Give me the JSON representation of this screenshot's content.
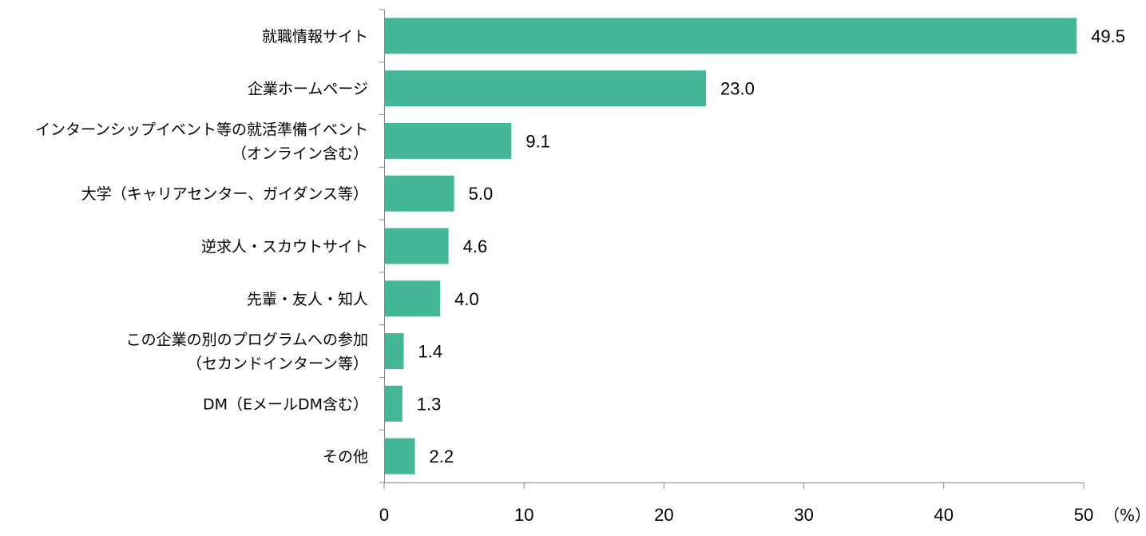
{
  "chart_data": {
    "type": "bar",
    "orientation": "horizontal",
    "categories": [
      [
        "就職情報サイト"
      ],
      [
        "企業ホームページ"
      ],
      [
        "インターンシップイベント等の就活準備イベント",
        "（オンライン含む）"
      ],
      [
        "大学（キャリアセンター、ガイダンス等）"
      ],
      [
        "逆求人・スカウトサイト"
      ],
      [
        "先輩・友人・知人"
      ],
      [
        "この企業の別のプログラムへの参加",
        "（セカンドインターン等）"
      ],
      [
        "DM（EメールDM含む）"
      ],
      [
        "その他"
      ]
    ],
    "values": [
      49.5,
      23.0,
      9.1,
      5.0,
      4.6,
      4.0,
      1.4,
      1.3,
      2.2
    ],
    "value_labels": [
      "49.5",
      "23.0",
      "9.1",
      "5.0",
      "4.6",
      "4.0",
      "1.4",
      "1.3",
      "2.2"
    ],
    "x_ticks": [
      "0",
      "10",
      "20",
      "30",
      "40",
      "50"
    ],
    "xlim": [
      0,
      50
    ],
    "unit": "（%）",
    "bar_color": "#44b896",
    "axis_color": "#888888",
    "grid": false,
    "legend": "none"
  }
}
